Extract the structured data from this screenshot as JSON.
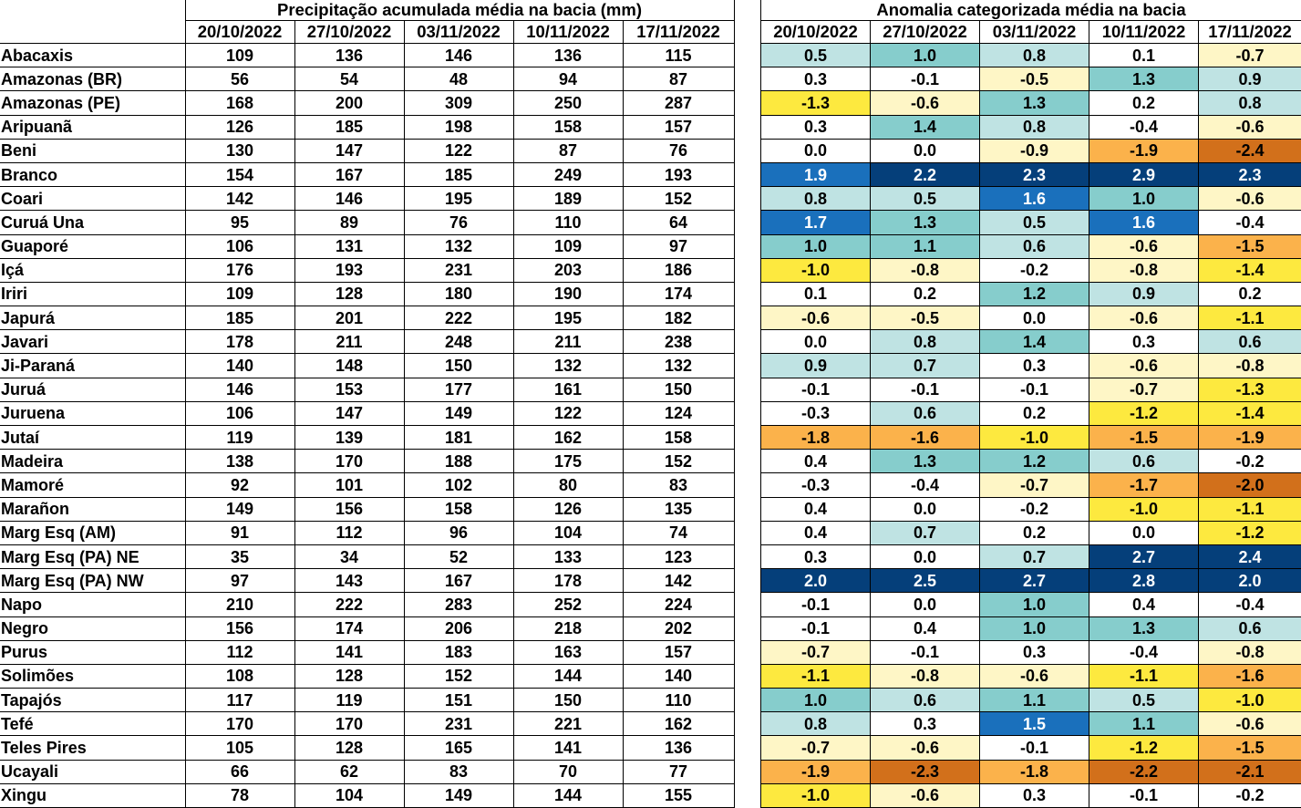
{
  "precip": {
    "title": "Precipitação acumulada média na bacia (mm)",
    "dates": [
      "20/10/2022",
      "27/10/2022",
      "03/11/2022",
      "10/11/2022",
      "17/11/2022"
    ]
  },
  "anomaly": {
    "title": "Anomalia categorizada média na bacia",
    "dates": [
      "20/10/2022",
      "27/10/2022",
      "03/11/2022",
      "10/11/2022",
      "17/11/2022"
    ],
    "category_colors": {
      "c-dorg": "#d2701b",
      "c-org": "#fbb24b",
      "c-ylw": "#fde93f",
      "c-pyl": "#fef6c6",
      "c-wht": "#ffffff",
      "c-ltl": "#bfe3e3",
      "c-tel": "#86cdcc",
      "c-blu": "#1a70bc",
      "c-dbl": "#053f7a"
    }
  },
  "rows": [
    {
      "name": "Abacaxis",
      "precip": [
        "109",
        "136",
        "146",
        "136",
        "115"
      ],
      "anom": [
        "0.5",
        "1.0",
        "0.8",
        "0.1",
        "-0.7"
      ],
      "cats": [
        "c-ltl",
        "c-tel",
        "c-ltl",
        "c-wht",
        "c-pyl"
      ]
    },
    {
      "name": "Amazonas (BR)",
      "precip": [
        "56",
        "54",
        "48",
        "94",
        "87"
      ],
      "anom": [
        "0.3",
        "-0.1",
        "-0.5",
        "1.3",
        "0.9"
      ],
      "cats": [
        "c-wht",
        "c-wht",
        "c-pyl",
        "c-tel",
        "c-ltl"
      ]
    },
    {
      "name": "Amazonas (PE)",
      "precip": [
        "168",
        "200",
        "309",
        "250",
        "287"
      ],
      "anom": [
        "-1.3",
        "-0.6",
        "1.3",
        "0.2",
        "0.8"
      ],
      "cats": [
        "c-ylw",
        "c-pyl",
        "c-tel",
        "c-wht",
        "c-ltl"
      ]
    },
    {
      "name": "Aripuanã",
      "precip": [
        "126",
        "185",
        "198",
        "158",
        "157"
      ],
      "anom": [
        "0.3",
        "1.4",
        "0.8",
        "-0.4",
        "-0.6"
      ],
      "cats": [
        "c-wht",
        "c-tel",
        "c-ltl",
        "c-wht",
        "c-pyl"
      ]
    },
    {
      "name": "Beni",
      "precip": [
        "130",
        "147",
        "122",
        "87",
        "76"
      ],
      "anom": [
        "0.0",
        "0.0",
        "-0.9",
        "-1.9",
        "-2.4"
      ],
      "cats": [
        "c-wht",
        "c-wht",
        "c-pyl",
        "c-org",
        "c-dorg"
      ]
    },
    {
      "name": "Branco",
      "precip": [
        "154",
        "167",
        "185",
        "249",
        "193"
      ],
      "anom": [
        "1.9",
        "2.2",
        "2.3",
        "2.9",
        "2.3"
      ],
      "cats": [
        "c-blu",
        "c-dbl",
        "c-dbl",
        "c-dbl",
        "c-dbl"
      ]
    },
    {
      "name": "Coari",
      "precip": [
        "142",
        "146",
        "195",
        "189",
        "152"
      ],
      "anom": [
        "0.8",
        "0.5",
        "1.6",
        "1.0",
        "-0.6"
      ],
      "cats": [
        "c-ltl",
        "c-ltl",
        "c-blu",
        "c-tel",
        "c-pyl"
      ]
    },
    {
      "name": "Curuá Una",
      "precip": [
        "95",
        "89",
        "76",
        "110",
        "64"
      ],
      "anom": [
        "1.7",
        "1.3",
        "0.5",
        "1.6",
        "-0.4"
      ],
      "cats": [
        "c-blu",
        "c-tel",
        "c-ltl",
        "c-blu",
        "c-wht"
      ]
    },
    {
      "name": "Guaporé",
      "precip": [
        "106",
        "131",
        "132",
        "109",
        "97"
      ],
      "anom": [
        "1.0",
        "1.1",
        "0.6",
        "-0.6",
        "-1.5"
      ],
      "cats": [
        "c-tel",
        "c-tel",
        "c-ltl",
        "c-pyl",
        "c-org"
      ]
    },
    {
      "name": "Içá",
      "precip": [
        "176",
        "193",
        "231",
        "203",
        "186"
      ],
      "anom": [
        "-1.0",
        "-0.8",
        "-0.2",
        "-0.8",
        "-1.4"
      ],
      "cats": [
        "c-ylw",
        "c-pyl",
        "c-wht",
        "c-pyl",
        "c-ylw"
      ]
    },
    {
      "name": "Iriri",
      "precip": [
        "109",
        "128",
        "180",
        "190",
        "174"
      ],
      "anom": [
        "0.1",
        "0.2",
        "1.2",
        "0.9",
        "0.2"
      ],
      "cats": [
        "c-wht",
        "c-wht",
        "c-tel",
        "c-ltl",
        "c-wht"
      ]
    },
    {
      "name": "Japurá",
      "precip": [
        "185",
        "201",
        "222",
        "195",
        "182"
      ],
      "anom": [
        "-0.6",
        "-0.5",
        "0.0",
        "-0.6",
        "-1.1"
      ],
      "cats": [
        "c-pyl",
        "c-pyl",
        "c-wht",
        "c-pyl",
        "c-ylw"
      ]
    },
    {
      "name": "Javari",
      "precip": [
        "178",
        "211",
        "248",
        "211",
        "238"
      ],
      "anom": [
        "0.0",
        "0.8",
        "1.4",
        "0.3",
        "0.6"
      ],
      "cats": [
        "c-wht",
        "c-ltl",
        "c-tel",
        "c-wht",
        "c-ltl"
      ]
    },
    {
      "name": "Ji-Paraná",
      "precip": [
        "140",
        "148",
        "150",
        "132",
        "132"
      ],
      "anom": [
        "0.9",
        "0.7",
        "0.3",
        "-0.6",
        "-0.8"
      ],
      "cats": [
        "c-ltl",
        "c-ltl",
        "c-wht",
        "c-pyl",
        "c-pyl"
      ]
    },
    {
      "name": "Juruá",
      "precip": [
        "146",
        "153",
        "177",
        "161",
        "150"
      ],
      "anom": [
        "-0.1",
        "-0.1",
        "-0.1",
        "-0.7",
        "-1.3"
      ],
      "cats": [
        "c-wht",
        "c-wht",
        "c-wht",
        "c-pyl",
        "c-ylw"
      ]
    },
    {
      "name": "Juruena",
      "precip": [
        "106",
        "147",
        "149",
        "122",
        "124"
      ],
      "anom": [
        "-0.3",
        "0.6",
        "0.2",
        "-1.2",
        "-1.4"
      ],
      "cats": [
        "c-wht",
        "c-ltl",
        "c-wht",
        "c-ylw",
        "c-ylw"
      ]
    },
    {
      "name": "Jutaí",
      "precip": [
        "119",
        "139",
        "181",
        "162",
        "158"
      ],
      "anom": [
        "-1.8",
        "-1.6",
        "-1.0",
        "-1.5",
        "-1.9"
      ],
      "cats": [
        "c-org",
        "c-org",
        "c-ylw",
        "c-org",
        "c-org"
      ]
    },
    {
      "name": "Madeira",
      "precip": [
        "138",
        "170",
        "188",
        "175",
        "152"
      ],
      "anom": [
        "0.4",
        "1.3",
        "1.2",
        "0.6",
        "-0.2"
      ],
      "cats": [
        "c-wht",
        "c-tel",
        "c-tel",
        "c-ltl",
        "c-wht"
      ]
    },
    {
      "name": "Mamoré",
      "precip": [
        "92",
        "101",
        "102",
        "80",
        "83"
      ],
      "anom": [
        "-0.3",
        "-0.4",
        "-0.7",
        "-1.7",
        "-2.0"
      ],
      "cats": [
        "c-wht",
        "c-wht",
        "c-pyl",
        "c-org",
        "c-dorg"
      ]
    },
    {
      "name": "Marañon",
      "precip": [
        "149",
        "156",
        "158",
        "126",
        "135"
      ],
      "anom": [
        "0.4",
        "0.0",
        "-0.2",
        "-1.0",
        "-1.1"
      ],
      "cats": [
        "c-wht",
        "c-wht",
        "c-wht",
        "c-ylw",
        "c-ylw"
      ]
    },
    {
      "name": "Marg Esq (AM)",
      "precip": [
        "91",
        "112",
        "96",
        "104",
        "74"
      ],
      "anom": [
        "0.4",
        "0.7",
        "0.2",
        "0.0",
        "-1.2"
      ],
      "cats": [
        "c-wht",
        "c-ltl",
        "c-wht",
        "c-wht",
        "c-ylw"
      ]
    },
    {
      "name": "Marg Esq (PA) NE",
      "precip": [
        "35",
        "34",
        "52",
        "133",
        "123"
      ],
      "anom": [
        "0.3",
        "0.0",
        "0.7",
        "2.7",
        "2.4"
      ],
      "cats": [
        "c-wht",
        "c-wht",
        "c-ltl",
        "c-dbl",
        "c-dbl"
      ]
    },
    {
      "name": "Marg Esq (PA) NW",
      "precip": [
        "97",
        "143",
        "167",
        "178",
        "142"
      ],
      "anom": [
        "2.0",
        "2.5",
        "2.7",
        "2.8",
        "2.0"
      ],
      "cats": [
        "c-dbl",
        "c-dbl",
        "c-dbl",
        "c-dbl",
        "c-dbl"
      ]
    },
    {
      "name": "Napo",
      "precip": [
        "210",
        "222",
        "283",
        "252",
        "224"
      ],
      "anom": [
        "-0.1",
        "0.0",
        "1.0",
        "0.4",
        "-0.4"
      ],
      "cats": [
        "c-wht",
        "c-wht",
        "c-tel",
        "c-wht",
        "c-wht"
      ]
    },
    {
      "name": "Negro",
      "precip": [
        "156",
        "174",
        "206",
        "218",
        "202"
      ],
      "anom": [
        "-0.1",
        "0.4",
        "1.0",
        "1.3",
        "0.6"
      ],
      "cats": [
        "c-wht",
        "c-wht",
        "c-tel",
        "c-tel",
        "c-ltl"
      ]
    },
    {
      "name": "Purus",
      "precip": [
        "112",
        "141",
        "183",
        "163",
        "157"
      ],
      "anom": [
        "-0.7",
        "-0.1",
        "0.3",
        "-0.4",
        "-0.8"
      ],
      "cats": [
        "c-pyl",
        "c-wht",
        "c-wht",
        "c-wht",
        "c-pyl"
      ]
    },
    {
      "name": "Solimões",
      "precip": [
        "108",
        "128",
        "152",
        "144",
        "140"
      ],
      "anom": [
        "-1.1",
        "-0.8",
        "-0.6",
        "-1.1",
        "-1.6"
      ],
      "cats": [
        "c-ylw",
        "c-pyl",
        "c-pyl",
        "c-ylw",
        "c-org"
      ]
    },
    {
      "name": "Tapajós",
      "precip": [
        "117",
        "119",
        "151",
        "150",
        "110"
      ],
      "anom": [
        "1.0",
        "0.6",
        "1.1",
        "0.5",
        "-1.0"
      ],
      "cats": [
        "c-tel",
        "c-ltl",
        "c-tel",
        "c-ltl",
        "c-ylw"
      ]
    },
    {
      "name": "Tefé",
      "precip": [
        "170",
        "170",
        "231",
        "221",
        "162"
      ],
      "anom": [
        "0.8",
        "0.3",
        "1.5",
        "1.1",
        "-0.6"
      ],
      "cats": [
        "c-ltl",
        "c-wht",
        "c-blu",
        "c-tel",
        "c-pyl"
      ]
    },
    {
      "name": "Teles Pires",
      "precip": [
        "105",
        "128",
        "165",
        "141",
        "136"
      ],
      "anom": [
        "-0.7",
        "-0.6",
        "-0.1",
        "-1.2",
        "-1.5"
      ],
      "cats": [
        "c-pyl",
        "c-pyl",
        "c-wht",
        "c-ylw",
        "c-org"
      ]
    },
    {
      "name": "Ucayali",
      "precip": [
        "66",
        "62",
        "83",
        "70",
        "77"
      ],
      "anom": [
        "-1.9",
        "-2.3",
        "-1.8",
        "-2.2",
        "-2.1"
      ],
      "cats": [
        "c-org",
        "c-dorg",
        "c-org",
        "c-dorg",
        "c-dorg"
      ]
    },
    {
      "name": "Xingu",
      "precip": [
        "78",
        "104",
        "149",
        "144",
        "155"
      ],
      "anom": [
        "-1.0",
        "-0.6",
        "0.3",
        "-0.1",
        "-0.2"
      ],
      "cats": [
        "c-ylw",
        "c-pyl",
        "c-wht",
        "c-wht",
        "c-wht"
      ]
    }
  ]
}
